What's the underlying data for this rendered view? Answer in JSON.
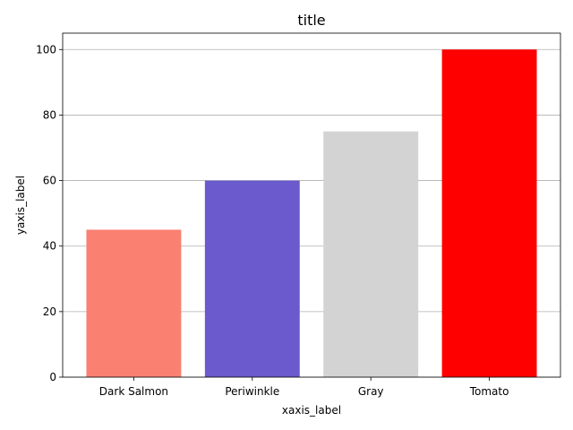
{
  "chart_data": {
    "type": "bar",
    "title": "title",
    "xlabel": "xaxis_label",
    "ylabel": "yaxis_label",
    "categories": [
      "Dark Salmon",
      "Periwinkle",
      "Gray",
      "Tomato"
    ],
    "values": [
      45,
      60,
      75,
      100
    ],
    "colors": [
      "#fa8072",
      "#6a5acd",
      "#d3d3d3",
      "#ff0000"
    ],
    "ylim": [
      0,
      105
    ],
    "yticks": [
      0,
      20,
      40,
      60,
      80,
      100
    ],
    "grid": "horizontal",
    "legend": "none"
  }
}
